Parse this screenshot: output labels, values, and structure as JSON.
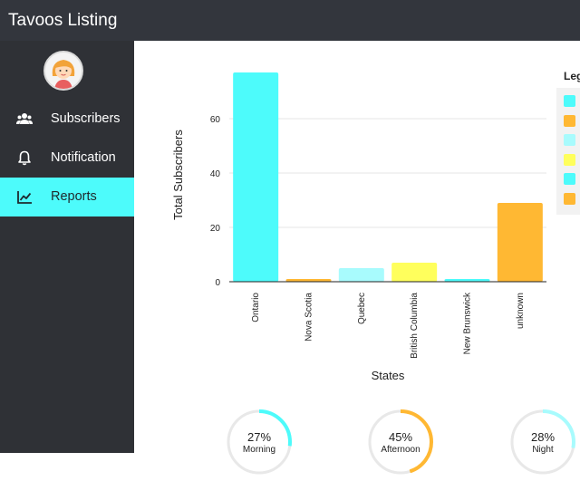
{
  "app": {
    "title": "Tavoos Listing"
  },
  "sidebar": {
    "items": [
      {
        "label": "Subscribers",
        "icon": "users-icon",
        "active": false
      },
      {
        "label": "Notification",
        "icon": "bell-icon",
        "active": false
      },
      {
        "label": "Reports",
        "icon": "chart-line-icon",
        "active": true
      }
    ]
  },
  "colors": {
    "cyan": "#4dfbfb",
    "orange": "#ffb833",
    "light_cyan": "#a8fbfd",
    "yellow": "#ffff5c",
    "topbar": "#33363d",
    "sidebar": "#2f3136"
  },
  "legend": {
    "title": "Leg",
    "swatches": [
      "#4dfbfb",
      "#ffb833",
      "#a8fbfd",
      "#ffff5c",
      "#4dfbfb",
      "#ffb833"
    ]
  },
  "chart_data": {
    "type": "bar",
    "categories": [
      "Ontario",
      "Nova Scotia",
      "Quebec",
      "British Columbia",
      "New Brunswick",
      "unknown"
    ],
    "values": [
      77,
      1,
      5,
      7,
      1,
      29
    ],
    "colors": [
      "#4dfbfb",
      "#ffb833",
      "#a8fbfd",
      "#ffff5c",
      "#4dfbfb",
      "#ffb833"
    ],
    "xlabel": "States",
    "ylabel": "Total Subscribers",
    "ylim": [
      0,
      80
    ],
    "yticks": [
      0,
      20,
      40,
      60
    ],
    "grid": true
  },
  "time_stats": [
    {
      "percent": 27,
      "label": "27%",
      "caption": "Morning",
      "color": "#4dfbfb"
    },
    {
      "percent": 45,
      "label": "45%",
      "caption": "Afternoon",
      "color": "#ffb833"
    },
    {
      "percent": 28,
      "label": "28%",
      "caption": "Night",
      "color": "#a8fbfd"
    }
  ]
}
